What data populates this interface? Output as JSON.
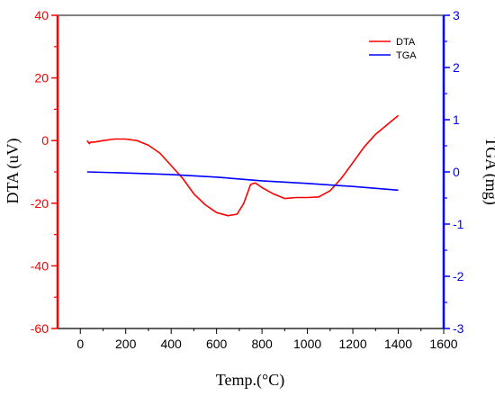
{
  "chart_data": {
    "type": "line",
    "xlabel": "Temp.(°C)",
    "ylabel_left": "DTA (uV)",
    "ylabel_right": "TGA (mg)",
    "xlim": [
      -100,
      1600
    ],
    "ylim_left": [
      -60,
      40
    ],
    "ylim_right": [
      -3,
      3
    ],
    "x_ticks": [
      0,
      200,
      400,
      600,
      800,
      1000,
      1200,
      1400,
      1600
    ],
    "y_left_ticks": [
      -60,
      -40,
      -20,
      0,
      20,
      40
    ],
    "y_right_ticks": [
      -3,
      -2,
      -1,
      0,
      1,
      2,
      3
    ],
    "legend_position": "top-right",
    "grid": false,
    "colors": {
      "dta": "#ff0000",
      "tga": "#0000ff",
      "frame": "#000000"
    },
    "series": [
      {
        "name": "DTA",
        "axis": "left",
        "color": "#ff0000",
        "x": [
          30,
          40,
          45,
          60,
          100,
          150,
          200,
          250,
          300,
          350,
          400,
          450,
          500,
          550,
          600,
          650,
          690,
          720,
          750,
          770,
          800,
          850,
          900,
          950,
          1000,
          1050,
          1100,
          1150,
          1200,
          1250,
          1300,
          1350,
          1400
        ],
        "y": [
          0,
          -1,
          -0.5,
          -0.5,
          0,
          0.5,
          0.5,
          0,
          -1.5,
          -4,
          -8,
          -12,
          -17,
          -20.5,
          -23,
          -24,
          -23.5,
          -20,
          -14,
          -13.5,
          -15,
          -17,
          -18.5,
          -18.2,
          -18.2,
          -18,
          -16,
          -12,
          -7,
          -2,
          2,
          5,
          8
        ]
      },
      {
        "name": "TGA",
        "axis": "right",
        "color": "#0000ff",
        "x": [
          30,
          200,
          400,
          600,
          800,
          1000,
          1200,
          1400
        ],
        "y": [
          0,
          -0.02,
          -0.05,
          -0.1,
          -0.17,
          -0.22,
          -0.28,
          -0.35
        ]
      }
    ]
  }
}
